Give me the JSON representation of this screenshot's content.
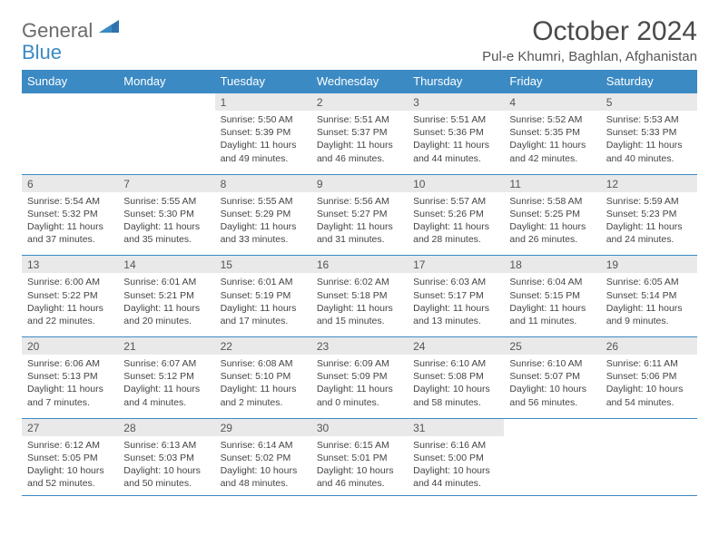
{
  "brand": {
    "name1": "General",
    "name2": "Blue"
  },
  "title": "October 2024",
  "location": "Pul-e Khumri, Baghlan, Afghanistan",
  "colors": {
    "accent": "#3b8ac4",
    "header_bg": "#3b8ac4",
    "daynum_bg": "#e9e9e9",
    "text": "#444444",
    "title_text": "#4a4a4a",
    "logo_gray": "#6b6b6b"
  },
  "daysOfWeek": [
    "Sunday",
    "Monday",
    "Tuesday",
    "Wednesday",
    "Thursday",
    "Friday",
    "Saturday"
  ],
  "weeks": [
    {
      "nums": [
        "",
        "",
        "1",
        "2",
        "3",
        "4",
        "5"
      ],
      "sunrise": [
        "",
        "",
        "Sunrise: 5:50 AM",
        "Sunrise: 5:51 AM",
        "Sunrise: 5:51 AM",
        "Sunrise: 5:52 AM",
        "Sunrise: 5:53 AM"
      ],
      "sunset": [
        "",
        "",
        "Sunset: 5:39 PM",
        "Sunset: 5:37 PM",
        "Sunset: 5:36 PM",
        "Sunset: 5:35 PM",
        "Sunset: 5:33 PM"
      ],
      "day1": [
        "",
        "",
        "Daylight: 11 hours",
        "Daylight: 11 hours",
        "Daylight: 11 hours",
        "Daylight: 11 hours",
        "Daylight: 11 hours"
      ],
      "day2": [
        "",
        "",
        "and 49 minutes.",
        "and 46 minutes.",
        "and 44 minutes.",
        "and 42 minutes.",
        "and 40 minutes."
      ]
    },
    {
      "nums": [
        "6",
        "7",
        "8",
        "9",
        "10",
        "11",
        "12"
      ],
      "sunrise": [
        "Sunrise: 5:54 AM",
        "Sunrise: 5:55 AM",
        "Sunrise: 5:55 AM",
        "Sunrise: 5:56 AM",
        "Sunrise: 5:57 AM",
        "Sunrise: 5:58 AM",
        "Sunrise: 5:59 AM"
      ],
      "sunset": [
        "Sunset: 5:32 PM",
        "Sunset: 5:30 PM",
        "Sunset: 5:29 PM",
        "Sunset: 5:27 PM",
        "Sunset: 5:26 PM",
        "Sunset: 5:25 PM",
        "Sunset: 5:23 PM"
      ],
      "day1": [
        "Daylight: 11 hours",
        "Daylight: 11 hours",
        "Daylight: 11 hours",
        "Daylight: 11 hours",
        "Daylight: 11 hours",
        "Daylight: 11 hours",
        "Daylight: 11 hours"
      ],
      "day2": [
        "and 37 minutes.",
        "and 35 minutes.",
        "and 33 minutes.",
        "and 31 minutes.",
        "and 28 minutes.",
        "and 26 minutes.",
        "and 24 minutes."
      ]
    },
    {
      "nums": [
        "13",
        "14",
        "15",
        "16",
        "17",
        "18",
        "19"
      ],
      "sunrise": [
        "Sunrise: 6:00 AM",
        "Sunrise: 6:01 AM",
        "Sunrise: 6:01 AM",
        "Sunrise: 6:02 AM",
        "Sunrise: 6:03 AM",
        "Sunrise: 6:04 AM",
        "Sunrise: 6:05 AM"
      ],
      "sunset": [
        "Sunset: 5:22 PM",
        "Sunset: 5:21 PM",
        "Sunset: 5:19 PM",
        "Sunset: 5:18 PM",
        "Sunset: 5:17 PM",
        "Sunset: 5:15 PM",
        "Sunset: 5:14 PM"
      ],
      "day1": [
        "Daylight: 11 hours",
        "Daylight: 11 hours",
        "Daylight: 11 hours",
        "Daylight: 11 hours",
        "Daylight: 11 hours",
        "Daylight: 11 hours",
        "Daylight: 11 hours"
      ],
      "day2": [
        "and 22 minutes.",
        "and 20 minutes.",
        "and 17 minutes.",
        "and 15 minutes.",
        "and 13 minutes.",
        "and 11 minutes.",
        "and 9 minutes."
      ]
    },
    {
      "nums": [
        "20",
        "21",
        "22",
        "23",
        "24",
        "25",
        "26"
      ],
      "sunrise": [
        "Sunrise: 6:06 AM",
        "Sunrise: 6:07 AM",
        "Sunrise: 6:08 AM",
        "Sunrise: 6:09 AM",
        "Sunrise: 6:10 AM",
        "Sunrise: 6:10 AM",
        "Sunrise: 6:11 AM"
      ],
      "sunset": [
        "Sunset: 5:13 PM",
        "Sunset: 5:12 PM",
        "Sunset: 5:10 PM",
        "Sunset: 5:09 PM",
        "Sunset: 5:08 PM",
        "Sunset: 5:07 PM",
        "Sunset: 5:06 PM"
      ],
      "day1": [
        "Daylight: 11 hours",
        "Daylight: 11 hours",
        "Daylight: 11 hours",
        "Daylight: 11 hours",
        "Daylight: 10 hours",
        "Daylight: 10 hours",
        "Daylight: 10 hours"
      ],
      "day2": [
        "and 7 minutes.",
        "and 4 minutes.",
        "and 2 minutes.",
        "and 0 minutes.",
        "and 58 minutes.",
        "and 56 minutes.",
        "and 54 minutes."
      ]
    },
    {
      "nums": [
        "27",
        "28",
        "29",
        "30",
        "31",
        "",
        ""
      ],
      "sunrise": [
        "Sunrise: 6:12 AM",
        "Sunrise: 6:13 AM",
        "Sunrise: 6:14 AM",
        "Sunrise: 6:15 AM",
        "Sunrise: 6:16 AM",
        "",
        ""
      ],
      "sunset": [
        "Sunset: 5:05 PM",
        "Sunset: 5:03 PM",
        "Sunset: 5:02 PM",
        "Sunset: 5:01 PM",
        "Sunset: 5:00 PM",
        "",
        ""
      ],
      "day1": [
        "Daylight: 10 hours",
        "Daylight: 10 hours",
        "Daylight: 10 hours",
        "Daylight: 10 hours",
        "Daylight: 10 hours",
        "",
        ""
      ],
      "day2": [
        "and 52 minutes.",
        "and 50 minutes.",
        "and 48 minutes.",
        "and 46 minutes.",
        "and 44 minutes.",
        "",
        ""
      ]
    }
  ]
}
